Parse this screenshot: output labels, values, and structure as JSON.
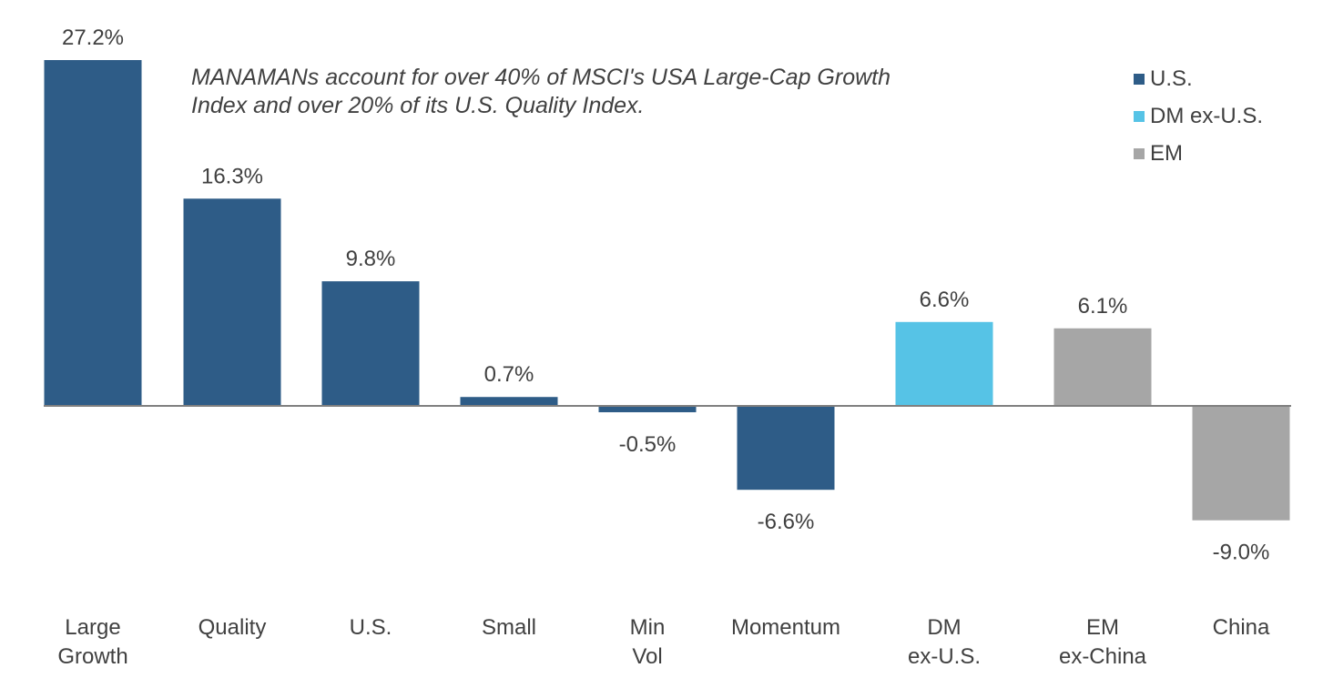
{
  "chart_data": {
    "type": "bar",
    "categories": [
      "Large\nGrowth",
      "Quality",
      "U.S.",
      "Small",
      "Min\nVol",
      "Momentum",
      "DM\nex-U.S.",
      "EM\nex-China",
      "China"
    ],
    "values": [
      27.2,
      16.3,
      9.8,
      0.7,
      -0.5,
      -6.6,
      6.6,
      6.1,
      -9.0
    ],
    "value_labels": [
      "27.2%",
      "16.3%",
      "9.8%",
      "0.7%",
      "-0.5%",
      "-6.6%",
      "6.6%",
      "6.1%",
      "-9.0%"
    ],
    "groups": [
      "U.S.",
      "U.S.",
      "U.S.",
      "U.S.",
      "U.S.",
      "U.S.",
      "DM ex-U.S.",
      "EM",
      "EM"
    ],
    "legend": [
      {
        "name": "U.S.",
        "color": "#2E5C87"
      },
      {
        "name": "DM ex-U.S.",
        "color": "#56C3E6"
      },
      {
        "name": "EM",
        "color": "#A6A6A6"
      }
    ],
    "legend_position": "top-right",
    "annotation": "MANAMANs account for over 40% of MSCI's USA Large-Cap Growth Index and over 20% of its U.S. Quality Index.",
    "title": "",
    "xlabel": "",
    "ylabel": "",
    "grid": false
  }
}
